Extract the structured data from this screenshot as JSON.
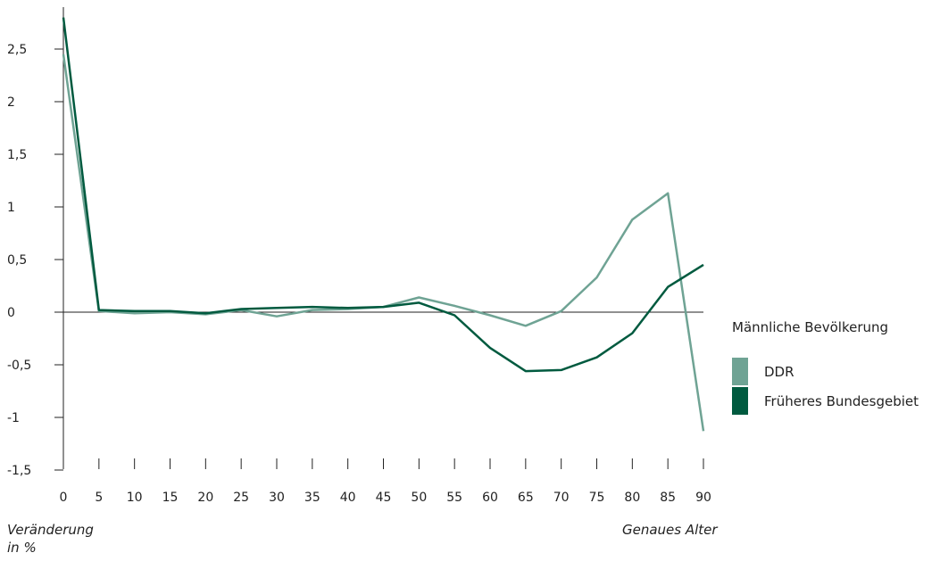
{
  "chart_data": {
    "type": "line",
    "x": [
      0,
      5,
      10,
      15,
      20,
      25,
      30,
      35,
      40,
      45,
      50,
      55,
      60,
      65,
      70,
      75,
      80,
      85,
      90
    ],
    "x_tick_labels": [
      "0",
      "5",
      "10",
      "15",
      "20",
      "25",
      "30",
      "35",
      "40",
      "45",
      "50",
      "55",
      "60",
      "65",
      "70",
      "75",
      "80",
      "85",
      "90"
    ],
    "y_ticks": [
      2.5,
      2,
      1.5,
      1,
      0.5,
      0,
      -0.5,
      -1,
      -1.5
    ],
    "y_tick_labels": [
      "2,5",
      "2",
      "1,5",
      "1",
      "0,5",
      "0",
      "-0,5",
      "-1",
      "-1,5"
    ],
    "ylim": [
      -1.5,
      2.9
    ],
    "xlim": [
      0,
      90
    ],
    "ylabel": "Veränderung in %",
    "xlabel": "Genaues Alter",
    "legend_title": "Männliche Bevölkerung",
    "legend_position": "right",
    "series": [
      {
        "name": "DDR",
        "color": "#6fa394",
        "values": [
          2.45,
          0.01,
          -0.01,
          0.0,
          -0.02,
          0.02,
          -0.04,
          0.02,
          0.03,
          0.05,
          0.14,
          0.06,
          -0.03,
          -0.13,
          0.01,
          0.33,
          0.88,
          1.13,
          -1.13
        ]
      },
      {
        "name": "Früheres Bundesgebiet",
        "color": "#005a3f",
        "values": [
          2.8,
          0.02,
          0.01,
          0.01,
          -0.01,
          0.03,
          0.04,
          0.05,
          0.04,
          0.05,
          0.09,
          -0.03,
          -0.34,
          -0.56,
          -0.55,
          -0.43,
          -0.2,
          0.24,
          0.45
        ]
      }
    ]
  }
}
